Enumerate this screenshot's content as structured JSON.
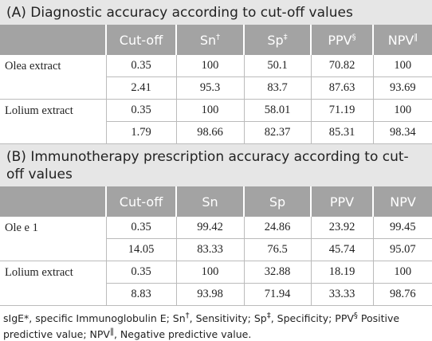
{
  "sections": [
    {
      "title": "(A) Diagnostic accuracy according to cut-off values",
      "columns": [
        {
          "text": "Cut-off"
        },
        {
          "text": "Sn",
          "sup": "†"
        },
        {
          "text": "Sp",
          "sup": "‡"
        },
        {
          "text": "PPV",
          "sup": "§"
        },
        {
          "text": "NPV",
          "sup": "‖"
        }
      ],
      "groups": [
        {
          "label": "Olea extract",
          "rows": [
            [
              "0.35",
              "100",
              "50.1",
              "70.82",
              "100"
            ],
            [
              "2.41",
              "95.3",
              "83.7",
              "87.63",
              "93.69"
            ]
          ]
        },
        {
          "label": "Lolium extract",
          "rows": [
            [
              "0.35",
              "100",
              "58.01",
              "71.19",
              "100"
            ],
            [
              "1.79",
              "98.66",
              "82.37",
              "85.31",
              "98.34"
            ]
          ]
        }
      ]
    },
    {
      "title": "(B) Immunotherapy prescription accuracy according to cut-off values",
      "columns": [
        {
          "text": "Cut-off"
        },
        {
          "text": "Sn"
        },
        {
          "text": "Sp"
        },
        {
          "text": "PPV"
        },
        {
          "text": "NPV"
        }
      ],
      "groups": [
        {
          "label": "Ole e 1",
          "rows": [
            [
              "0.35",
              "99.42",
              "24.86",
              "23.92",
              "99.45"
            ],
            [
              "14.05",
              "83.33",
              "76.5",
              "45.74",
              "95.07"
            ]
          ]
        },
        {
          "label": "Lolium extract",
          "rows": [
            [
              "0.35",
              "100",
              "32.88",
              "18.19",
              "100"
            ],
            [
              "8.83",
              "93.98",
              "71.94",
              "33.33",
              "98.76"
            ]
          ]
        }
      ]
    }
  ],
  "footnote": [
    {
      "text": "sIgE*, specific Immunoglobulin E; Sn"
    },
    {
      "text": "†",
      "sup": true
    },
    {
      "text": ", Sensitivity; Sp"
    },
    {
      "text": "‡",
      "sup": true
    },
    {
      "text": ", Specificity; PPV"
    },
    {
      "text": "§",
      "sup": true
    },
    {
      "text": " Positive predictive value; NPV"
    },
    {
      "text": "‖",
      "sup": true
    },
    {
      "text": ", Negative predictive value."
    }
  ]
}
